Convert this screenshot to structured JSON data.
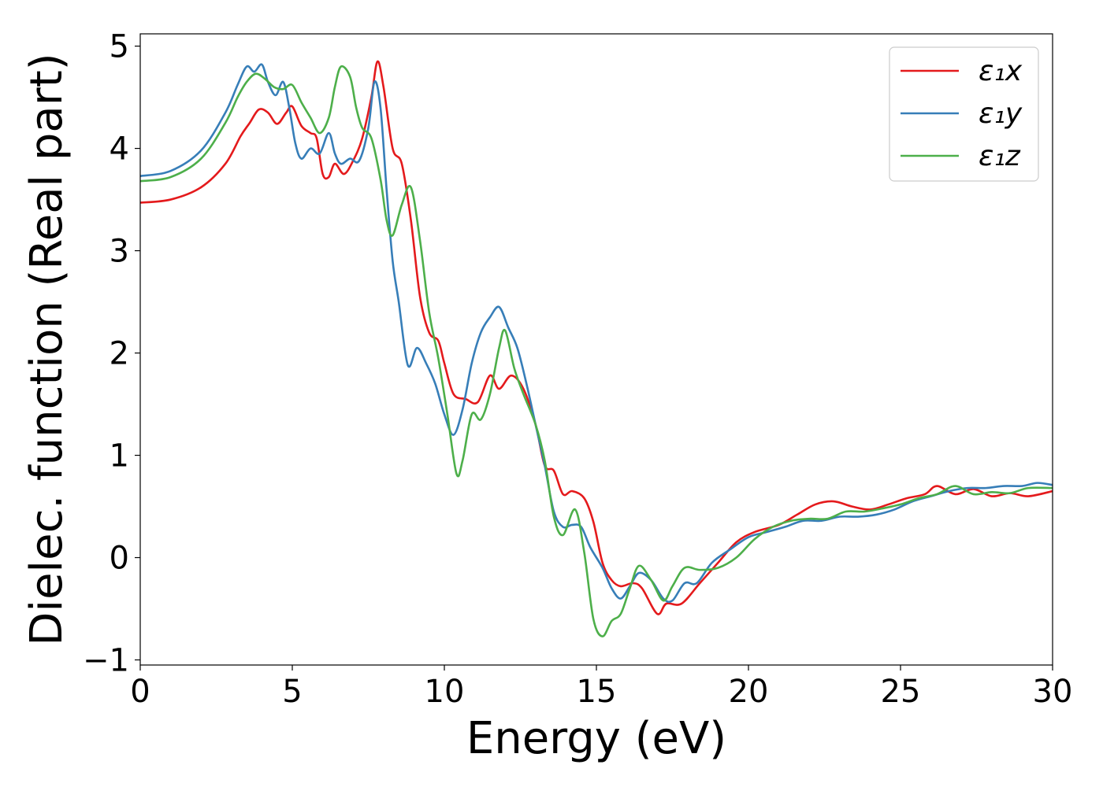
{
  "chart_data": {
    "type": "line",
    "xlabel": "Energy (eV)",
    "ylabel": "Dielec. function (Real part)",
    "xlim": [
      0,
      30
    ],
    "ylim": [
      -1.05,
      5.12
    ],
    "xticks": [
      0,
      5,
      10,
      15,
      20,
      25,
      30
    ],
    "xtick_labels": [
      "0",
      "5",
      "10",
      "15",
      "20",
      "25",
      "30"
    ],
    "yticks": [
      -1,
      0,
      1,
      2,
      3,
      4,
      5
    ],
    "ytick_labels": [
      "−1",
      "0",
      "1",
      "2",
      "3",
      "4",
      "5"
    ],
    "grid": false,
    "legend_position": "top-right",
    "series": [
      {
        "name": "ε₁x",
        "color": "#e41a1c",
        "points": [
          [
            0,
            3.47
          ],
          [
            1,
            3.5
          ],
          [
            2,
            3.62
          ],
          [
            2.8,
            3.85
          ],
          [
            3.3,
            4.12
          ],
          [
            3.6,
            4.25
          ],
          [
            3.9,
            4.38
          ],
          [
            4.2,
            4.35
          ],
          [
            4.5,
            4.24
          ],
          [
            4.8,
            4.35
          ],
          [
            5.0,
            4.41
          ],
          [
            5.3,
            4.22
          ],
          [
            5.6,
            4.15
          ],
          [
            5.8,
            4.1
          ],
          [
            6.0,
            3.75
          ],
          [
            6.2,
            3.72
          ],
          [
            6.4,
            3.85
          ],
          [
            6.7,
            3.75
          ],
          [
            7.0,
            3.88
          ],
          [
            7.3,
            4.1
          ],
          [
            7.6,
            4.5
          ],
          [
            7.8,
            4.85
          ],
          [
            8.0,
            4.6
          ],
          [
            8.3,
            4.0
          ],
          [
            8.6,
            3.85
          ],
          [
            8.9,
            3.3
          ],
          [
            9.2,
            2.55
          ],
          [
            9.5,
            2.2
          ],
          [
            9.8,
            2.12
          ],
          [
            10.0,
            1.9
          ],
          [
            10.3,
            1.6
          ],
          [
            10.7,
            1.55
          ],
          [
            11.1,
            1.52
          ],
          [
            11.5,
            1.78
          ],
          [
            11.8,
            1.65
          ],
          [
            12.2,
            1.78
          ],
          [
            12.6,
            1.65
          ],
          [
            13.0,
            1.3
          ],
          [
            13.3,
            0.9
          ],
          [
            13.6,
            0.85
          ],
          [
            13.9,
            0.62
          ],
          [
            14.2,
            0.65
          ],
          [
            14.6,
            0.58
          ],
          [
            14.9,
            0.35
          ],
          [
            15.2,
            -0.05
          ],
          [
            15.5,
            -0.22
          ],
          [
            15.8,
            -0.28
          ],
          [
            16.2,
            -0.25
          ],
          [
            16.5,
            -0.3
          ],
          [
            17.0,
            -0.55
          ],
          [
            17.3,
            -0.45
          ],
          [
            17.8,
            -0.45
          ],
          [
            18.4,
            -0.25
          ],
          [
            19.0,
            -0.05
          ],
          [
            19.6,
            0.15
          ],
          [
            20.2,
            0.25
          ],
          [
            21.0,
            0.32
          ],
          [
            21.6,
            0.42
          ],
          [
            22.2,
            0.52
          ],
          [
            22.8,
            0.55
          ],
          [
            23.4,
            0.5
          ],
          [
            24.0,
            0.47
          ],
          [
            24.6,
            0.52
          ],
          [
            25.2,
            0.58
          ],
          [
            25.8,
            0.62
          ],
          [
            26.2,
            0.7
          ],
          [
            26.8,
            0.62
          ],
          [
            27.4,
            0.67
          ],
          [
            28.0,
            0.6
          ],
          [
            28.6,
            0.63
          ],
          [
            29.2,
            0.6
          ],
          [
            30.0,
            0.65
          ]
        ]
      },
      {
        "name": "ε₁y",
        "color": "#377eb8",
        "points": [
          [
            0,
            3.73
          ],
          [
            1,
            3.78
          ],
          [
            2,
            3.98
          ],
          [
            2.8,
            4.35
          ],
          [
            3.2,
            4.62
          ],
          [
            3.5,
            4.8
          ],
          [
            3.75,
            4.75
          ],
          [
            4.0,
            4.82
          ],
          [
            4.2,
            4.65
          ],
          [
            4.45,
            4.52
          ],
          [
            4.7,
            4.65
          ],
          [
            4.9,
            4.4
          ],
          [
            5.1,
            4.05
          ],
          [
            5.3,
            3.9
          ],
          [
            5.6,
            4.0
          ],
          [
            5.9,
            3.95
          ],
          [
            6.2,
            4.15
          ],
          [
            6.4,
            3.95
          ],
          [
            6.6,
            3.85
          ],
          [
            6.9,
            3.9
          ],
          [
            7.2,
            3.88
          ],
          [
            7.5,
            4.2
          ],
          [
            7.7,
            4.65
          ],
          [
            7.9,
            4.4
          ],
          [
            8.1,
            3.6
          ],
          [
            8.3,
            2.9
          ],
          [
            8.5,
            2.5
          ],
          [
            8.8,
            1.88
          ],
          [
            9.1,
            2.05
          ],
          [
            9.4,
            1.9
          ],
          [
            9.7,
            1.7
          ],
          [
            10.0,
            1.4
          ],
          [
            10.3,
            1.2
          ],
          [
            10.6,
            1.45
          ],
          [
            10.9,
            1.9
          ],
          [
            11.2,
            2.2
          ],
          [
            11.5,
            2.35
          ],
          [
            11.8,
            2.45
          ],
          [
            12.1,
            2.25
          ],
          [
            12.4,
            2.05
          ],
          [
            12.7,
            1.7
          ],
          [
            13.0,
            1.3
          ],
          [
            13.3,
            0.9
          ],
          [
            13.6,
            0.45
          ],
          [
            13.9,
            0.3
          ],
          [
            14.2,
            0.32
          ],
          [
            14.5,
            0.3
          ],
          [
            14.8,
            0.1
          ],
          [
            15.2,
            -0.1
          ],
          [
            15.5,
            -0.3
          ],
          [
            15.8,
            -0.4
          ],
          [
            16.1,
            -0.28
          ],
          [
            16.4,
            -0.15
          ],
          [
            16.8,
            -0.22
          ],
          [
            17.2,
            -0.4
          ],
          [
            17.5,
            -0.42
          ],
          [
            17.9,
            -0.25
          ],
          [
            18.3,
            -0.25
          ],
          [
            18.8,
            -0.05
          ],
          [
            19.4,
            0.08
          ],
          [
            20.0,
            0.2
          ],
          [
            20.6,
            0.25
          ],
          [
            21.2,
            0.3
          ],
          [
            21.8,
            0.36
          ],
          [
            22.4,
            0.36
          ],
          [
            23.0,
            0.4
          ],
          [
            23.6,
            0.4
          ],
          [
            24.2,
            0.42
          ],
          [
            24.8,
            0.47
          ],
          [
            25.4,
            0.55
          ],
          [
            26.0,
            0.6
          ],
          [
            26.6,
            0.65
          ],
          [
            27.2,
            0.68
          ],
          [
            27.8,
            0.68
          ],
          [
            28.4,
            0.7
          ],
          [
            29.0,
            0.7
          ],
          [
            29.5,
            0.73
          ],
          [
            30.0,
            0.71
          ]
        ]
      },
      {
        "name": "ε₁z",
        "color": "#4daf4a",
        "points": [
          [
            0,
            3.68
          ],
          [
            1,
            3.72
          ],
          [
            2,
            3.9
          ],
          [
            2.8,
            4.25
          ],
          [
            3.2,
            4.5
          ],
          [
            3.5,
            4.65
          ],
          [
            3.8,
            4.73
          ],
          [
            4.1,
            4.68
          ],
          [
            4.4,
            4.6
          ],
          [
            4.7,
            4.58
          ],
          [
            5.0,
            4.62
          ],
          [
            5.3,
            4.45
          ],
          [
            5.6,
            4.3
          ],
          [
            5.9,
            4.15
          ],
          [
            6.2,
            4.3
          ],
          [
            6.4,
            4.6
          ],
          [
            6.6,
            4.8
          ],
          [
            6.9,
            4.7
          ],
          [
            7.1,
            4.4
          ],
          [
            7.3,
            4.2
          ],
          [
            7.6,
            4.1
          ],
          [
            7.9,
            3.7
          ],
          [
            8.1,
            3.3
          ],
          [
            8.3,
            3.15
          ],
          [
            8.6,
            3.45
          ],
          [
            8.9,
            3.62
          ],
          [
            9.2,
            3.1
          ],
          [
            9.5,
            2.4
          ],
          [
            9.8,
            1.95
          ],
          [
            10.1,
            1.4
          ],
          [
            10.4,
            0.82
          ],
          [
            10.6,
            0.95
          ],
          [
            10.9,
            1.4
          ],
          [
            11.2,
            1.35
          ],
          [
            11.5,
            1.6
          ],
          [
            11.8,
            2.05
          ],
          [
            12.0,
            2.22
          ],
          [
            12.3,
            1.85
          ],
          [
            12.6,
            1.6
          ],
          [
            13.0,
            1.3
          ],
          [
            13.3,
            0.95
          ],
          [
            13.6,
            0.4
          ],
          [
            13.9,
            0.22
          ],
          [
            14.3,
            0.47
          ],
          [
            14.6,
            0.05
          ],
          [
            14.9,
            -0.6
          ],
          [
            15.2,
            -0.77
          ],
          [
            15.5,
            -0.62
          ],
          [
            15.8,
            -0.55
          ],
          [
            16.1,
            -0.3
          ],
          [
            16.4,
            -0.08
          ],
          [
            16.8,
            -0.22
          ],
          [
            17.2,
            -0.42
          ],
          [
            17.5,
            -0.28
          ],
          [
            17.9,
            -0.1
          ],
          [
            18.4,
            -0.12
          ],
          [
            19.0,
            -0.1
          ],
          [
            19.6,
            0.0
          ],
          [
            20.2,
            0.18
          ],
          [
            20.8,
            0.3
          ],
          [
            21.4,
            0.36
          ],
          [
            22.0,
            0.38
          ],
          [
            22.6,
            0.38
          ],
          [
            23.2,
            0.45
          ],
          [
            23.8,
            0.45
          ],
          [
            24.4,
            0.48
          ],
          [
            25.0,
            0.52
          ],
          [
            25.6,
            0.58
          ],
          [
            26.2,
            0.62
          ],
          [
            26.8,
            0.7
          ],
          [
            27.4,
            0.62
          ],
          [
            28.0,
            0.64
          ],
          [
            28.6,
            0.63
          ],
          [
            29.2,
            0.68
          ],
          [
            30.0,
            0.68
          ]
        ]
      }
    ]
  }
}
